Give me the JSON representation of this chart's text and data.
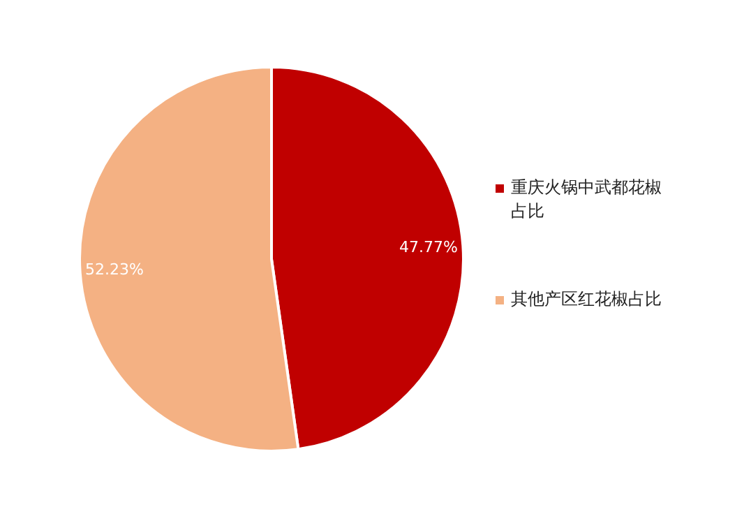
{
  "chart_data": {
    "type": "pie",
    "categories": [
      "重庆火锅中武都花椒占比",
      "其他产区红花椒占比"
    ],
    "values": [
      47.77,
      52.23
    ],
    "colors": [
      "#c00000",
      "#f4b183"
    ],
    "value_labels": [
      "47.77%",
      "52.23%"
    ],
    "legend": "right"
  }
}
